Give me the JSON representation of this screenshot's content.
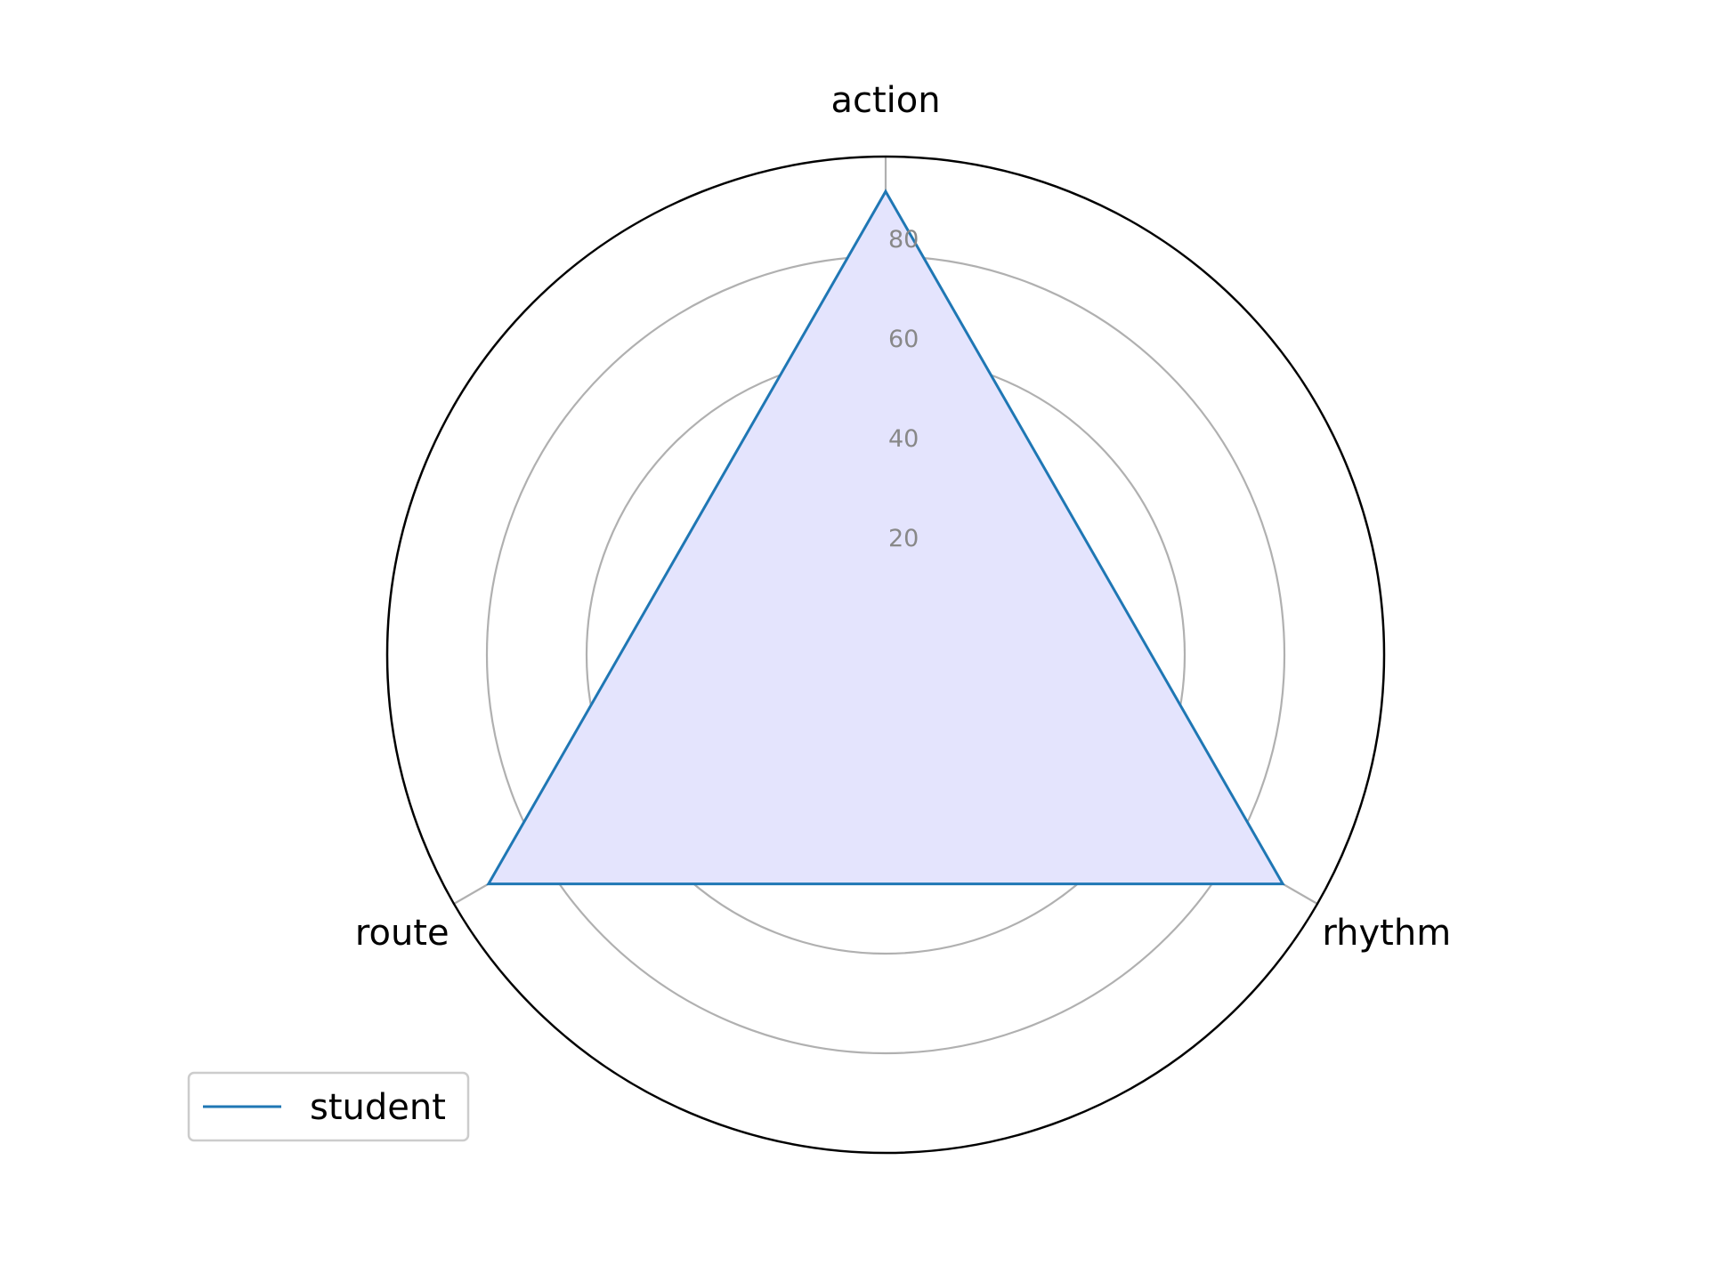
{
  "chart_data": {
    "type": "radar",
    "axes": [
      "action",
      "rhythm",
      "route"
    ],
    "rlim": [
      0,
      100
    ],
    "r_ticks": [
      20,
      40,
      60,
      80
    ],
    "r_tick_labels": [
      "20",
      "40",
      "60",
      "80"
    ],
    "grid": true,
    "legend_position": "lower-left",
    "series": [
      {
        "name": "student",
        "values": [
          93,
          92,
          92
        ],
        "line_color": "#1f77b4",
        "fill_color": "#e4e4fd"
      }
    ]
  },
  "colors": {
    "grid": "#b0b0b0",
    "frame": "#000000",
    "tick_text": "#888888"
  }
}
